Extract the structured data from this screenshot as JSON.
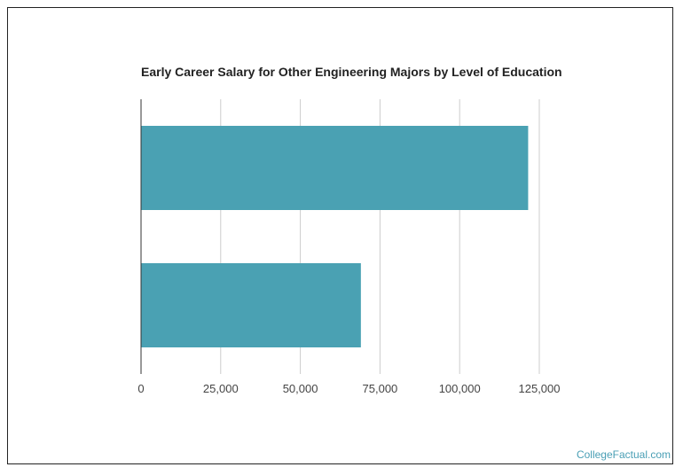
{
  "chart_data": {
    "type": "bar",
    "orientation": "horizontal",
    "title": "Early Career Salary for Other Engineering Majors by Level of Education",
    "categories": [
      "",
      ""
    ],
    "values": [
      121500,
      69000
    ],
    "xlim": [
      0,
      125000
    ],
    "xticks": [
      0,
      25000,
      50000,
      75000,
      100000,
      125000
    ],
    "xtick_labels": [
      "0",
      "25,000",
      "50,000",
      "75,000",
      "100,000",
      "125,000"
    ],
    "xlabel": "",
    "ylabel": "",
    "grid": "vertical",
    "legend": "none",
    "bar_color": "#4aa1b3"
  },
  "watermark": "CollegeFactual.com"
}
